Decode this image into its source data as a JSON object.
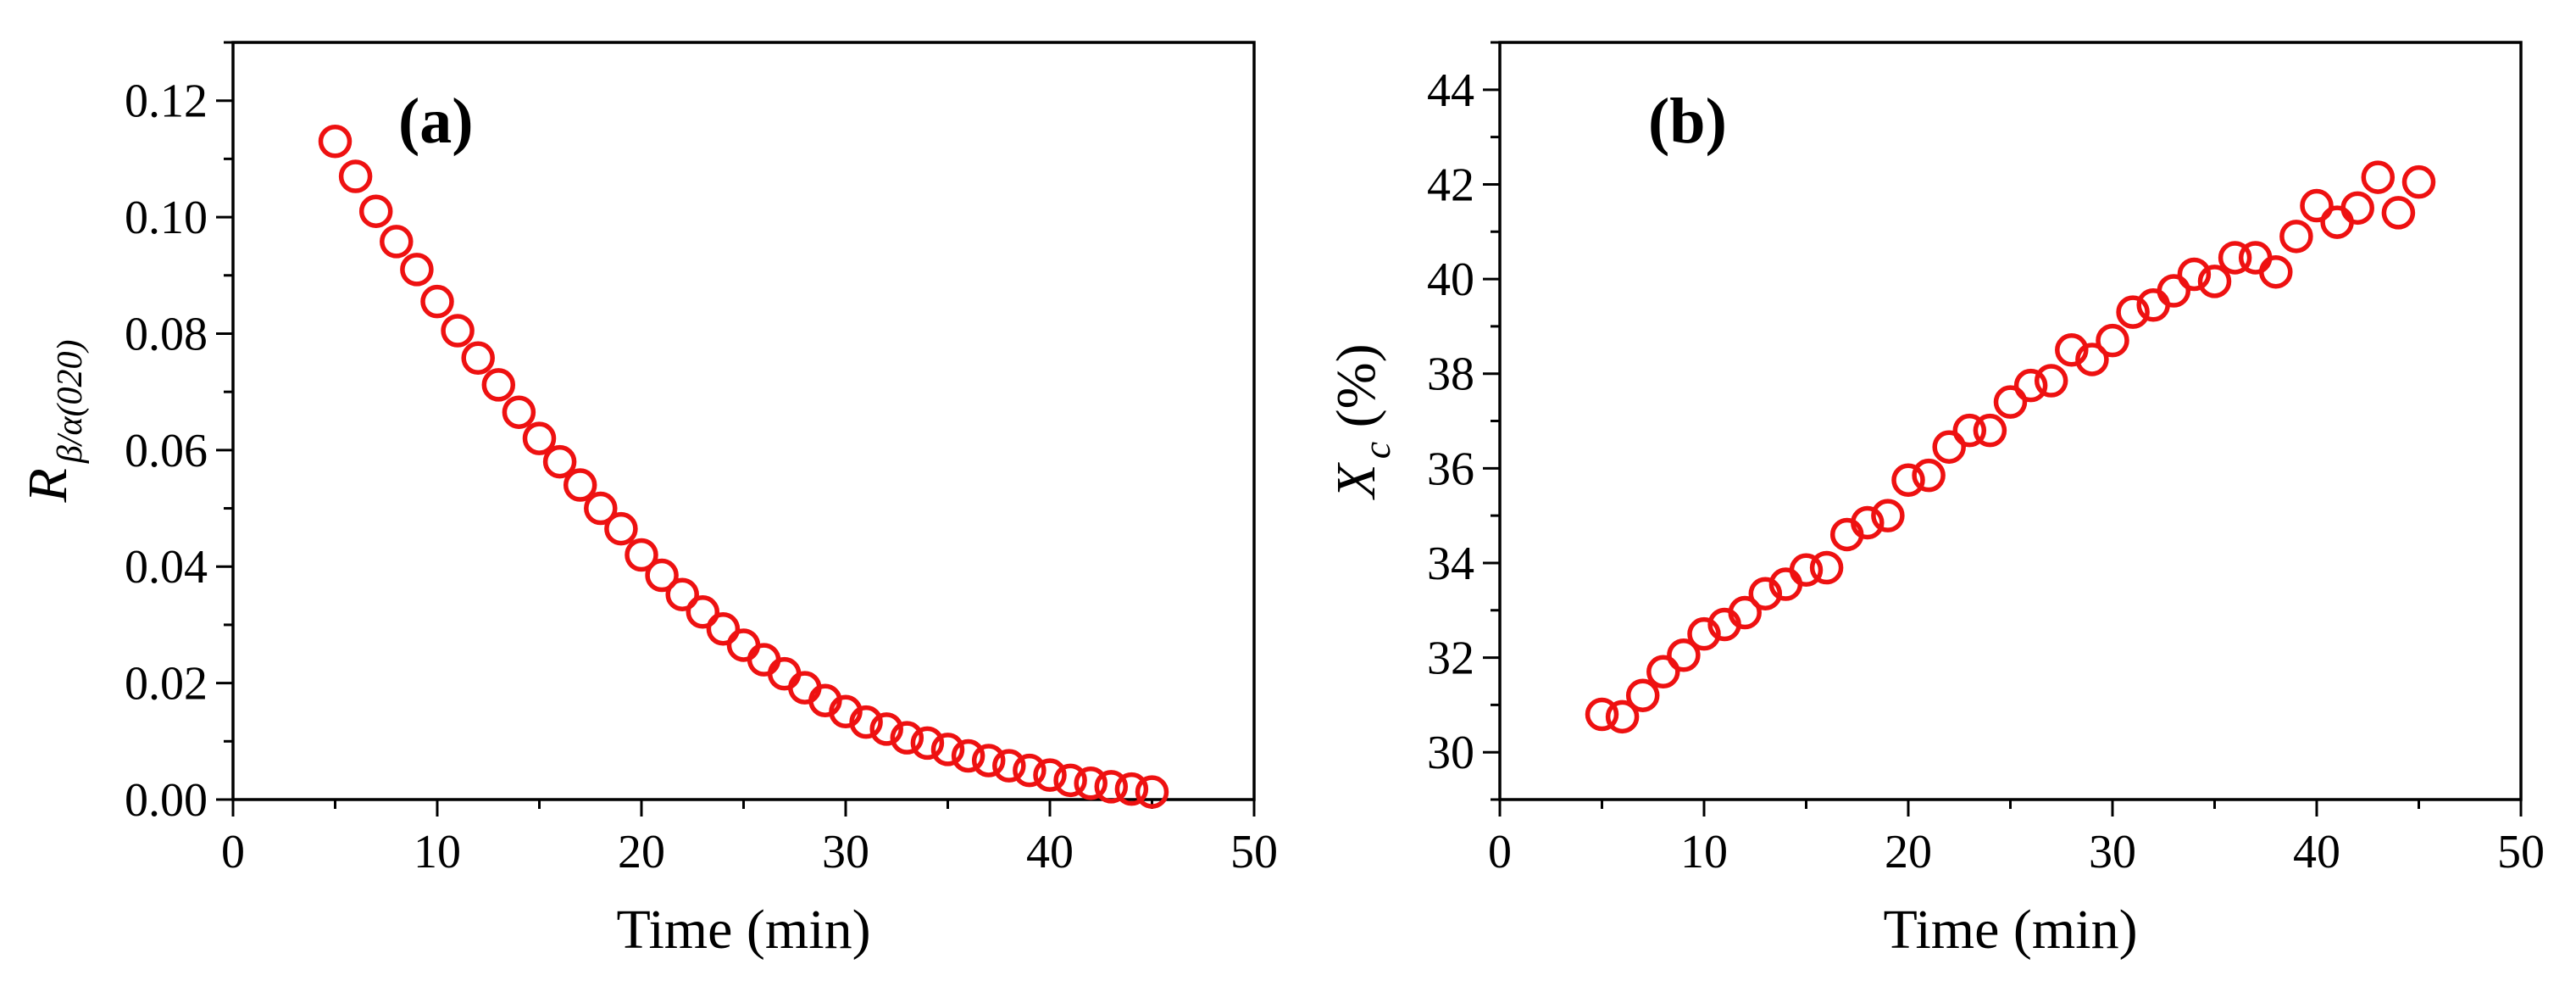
{
  "marker_color": "#ee1111",
  "chart_data": [
    {
      "type": "scatter",
      "panel_label": "(a)",
      "xlabel": "Time (min)",
      "ylabel": {
        "main": "R",
        "sub": "β/α(020)"
      },
      "xlim": [
        0,
        50
      ],
      "ylim": [
        0,
        0.13
      ],
      "xticks": [
        0,
        10,
        20,
        30,
        40,
        50
      ],
      "xtick_labels": [
        "0",
        "10",
        "20",
        "30",
        "40",
        "50"
      ],
      "yticks": [
        0,
        0.02,
        0.04,
        0.06,
        0.08,
        0.1,
        0.12
      ],
      "ytick_labels": [
        "0.00",
        "0.02",
        "0.04",
        "0.06",
        "0.08",
        "0.10",
        "0.12"
      ],
      "x": [
        5,
        6,
        7,
        8,
        9,
        10,
        11,
        12,
        13,
        14,
        15,
        16,
        17,
        18,
        19,
        20,
        21,
        22,
        23,
        24,
        25,
        26,
        27,
        28,
        29,
        30,
        31,
        32,
        33,
        34,
        35,
        36,
        37,
        38,
        39,
        40,
        41,
        42,
        43,
        44,
        45
      ],
      "y": [
        0.113,
        0.107,
        0.101,
        0.0958,
        0.091,
        0.0855,
        0.0805,
        0.0758,
        0.0712,
        0.0665,
        0.062,
        0.058,
        0.054,
        0.05,
        0.0465,
        0.042,
        0.0385,
        0.0352,
        0.0322,
        0.0293,
        0.0265,
        0.024,
        0.0216,
        0.0192,
        0.017,
        0.0151,
        0.0133,
        0.0121,
        0.0106,
        0.0097,
        0.0086,
        0.0075,
        0.0067,
        0.0058,
        0.005,
        0.0042,
        0.0033,
        0.0028,
        0.0022,
        0.0018,
        0.0013
      ]
    },
    {
      "type": "scatter",
      "panel_label": "(b)",
      "xlabel": "Time (min)",
      "ylabel": {
        "main": "X",
        "sub": "c",
        "suffix": " (%)"
      },
      "xlim": [
        0,
        50
      ],
      "ylim": [
        29,
        45
      ],
      "xticks": [
        0,
        10,
        20,
        30,
        40,
        50
      ],
      "xtick_labels": [
        "0",
        "10",
        "20",
        "30",
        "40",
        "50"
      ],
      "yticks": [
        30,
        32,
        34,
        36,
        38,
        40,
        42,
        44
      ],
      "ytick_labels": [
        "30",
        "32",
        "34",
        "36",
        "38",
        "40",
        "42",
        "44"
      ],
      "x": [
        5,
        6,
        7,
        8,
        9,
        10,
        11,
        12,
        13,
        14,
        15,
        16,
        17,
        18,
        19,
        20,
        21,
        22,
        23,
        24,
        25,
        26,
        27,
        28,
        29,
        30,
        31,
        32,
        33,
        34,
        35,
        36,
        37,
        38,
        39,
        40,
        41,
        42,
        43,
        44,
        45
      ],
      "y": [
        30.8,
        30.75,
        31.2,
        31.7,
        32.05,
        32.5,
        32.7,
        32.95,
        33.35,
        33.55,
        33.85,
        33.9,
        34.6,
        34.85,
        35.0,
        35.75,
        35.85,
        36.45,
        36.8,
        36.8,
        37.4,
        37.75,
        37.85,
        38.5,
        38.3,
        38.7,
        39.3,
        39.45,
        39.75,
        40.1,
        39.95,
        40.45,
        40.45,
        40.15,
        40.9,
        41.55,
        41.2,
        41.5,
        42.15,
        41.4,
        42.05
      ]
    }
  ]
}
